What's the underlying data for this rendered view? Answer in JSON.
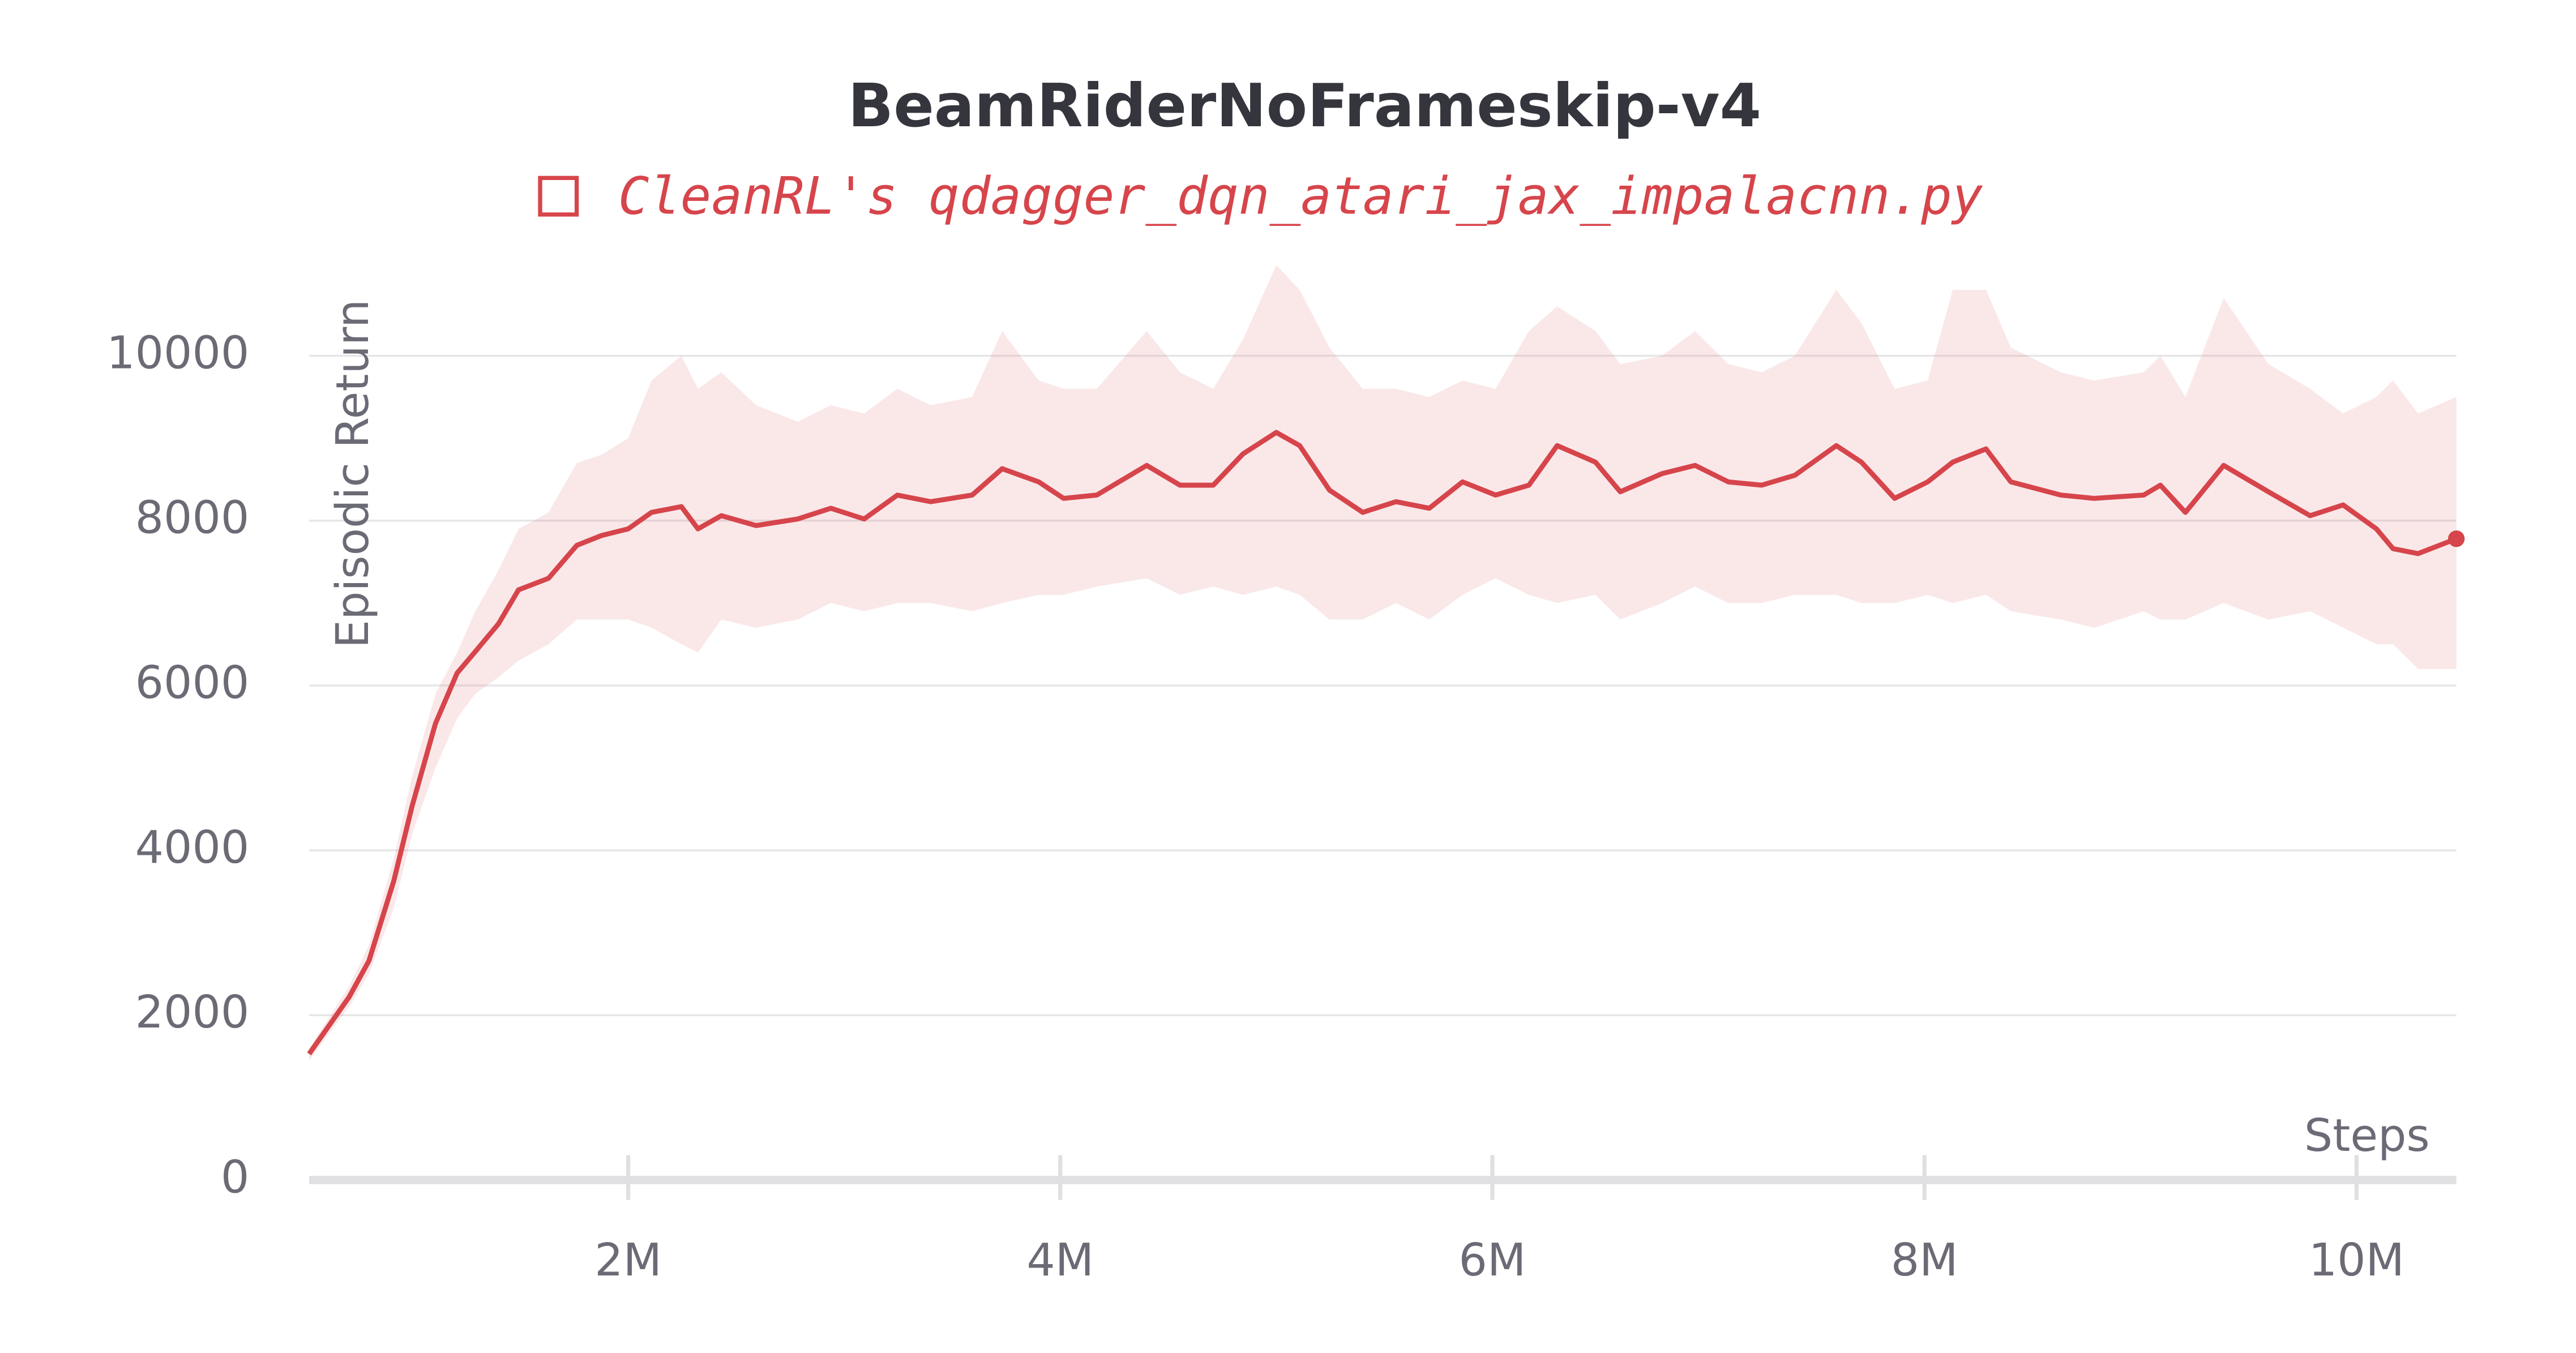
{
  "chart_data": {
    "type": "line",
    "title": "BeamRiderNoFrameskip-v4",
    "y_label": "Episodic Return",
    "x_label": "Steps",
    "xlim": [
      523000,
      10462000
    ],
    "ylim": [
      0,
      11200
    ],
    "yticks": [
      0,
      2000,
      4000,
      6000,
      8000,
      10000
    ],
    "xticks": [
      {
        "value": 2000000,
        "label": "2M"
      },
      {
        "value": 4000000,
        "label": "4M"
      },
      {
        "value": 6000000,
        "label": "6M"
      },
      {
        "value": 8000000,
        "label": "8M"
      },
      {
        "value": 10000000,
        "label": "10M"
      }
    ],
    "grid": true,
    "legend": "top",
    "x": [
      523000,
      708000,
      800000,
      915000,
      1000000,
      1108000,
      1208000,
      1292000,
      1400000,
      1492000,
      1631000,
      1762000,
      1877000,
      2000000,
      2108000,
      2246000,
      2323000,
      2431000,
      2592000,
      2785000,
      2938000,
      3092000,
      3246000,
      3400000,
      3592000,
      3731000,
      3900000,
      4015000,
      4169000,
      4400000,
      4554000,
      4708000,
      4846000,
      5000000,
      5108000,
      5246000,
      5400000,
      5554000,
      5708000,
      5862000,
      6015000,
      6169000,
      6300000,
      6477000,
      6592000,
      6785000,
      6938000,
      7092000,
      7246000,
      7400000,
      7592000,
      7708000,
      7862000,
      8015000,
      8131000,
      8285000,
      8400000,
      8631000,
      8785000,
      9015000,
      9092000,
      9208000,
      9385000,
      9592000,
      9785000,
      9938000,
      10092000,
      10169000,
      10285000,
      10462000
    ],
    "series": [
      {
        "name": "CleanRL's qdagger_dqn_atari_jax_impalacnn.py",
        "color": "#d6454b",
        "values": [
          1530,
          2220,
          2660,
          3630,
          4540,
          5540,
          6150,
          6410,
          6750,
          7160,
          7300,
          7700,
          7820,
          7900,
          8100,
          8170,
          7900,
          8060,
          7940,
          8020,
          8150,
          8020,
          8310,
          8230,
          8310,
          8630,
          8470,
          8270,
          8310,
          8670,
          8430,
          8430,
          8810,
          9070,
          8910,
          8370,
          8100,
          8230,
          8150,
          8470,
          8310,
          8430,
          8910,
          8710,
          8350,
          8570,
          8670,
          8470,
          8430,
          8550,
          8910,
          8710,
          8270,
          8470,
          8710,
          8870,
          8470,
          8310,
          8270,
          8310,
          8430,
          8100,
          8670,
          8350,
          8060,
          8190,
          7900,
          7660,
          7600,
          7780
        ],
        "upper": [
          1600,
          2350,
          2850,
          3900,
          4900,
          5900,
          6400,
          6900,
          7400,
          7900,
          8100,
          8700,
          8800,
          9000,
          9700,
          10000,
          9600,
          9800,
          9400,
          9200,
          9400,
          9300,
          9600,
          9400,
          9500,
          10300,
          9700,
          9600,
          9600,
          10300,
          9800,
          9600,
          10200,
          11100,
          10800,
          10100,
          9600,
          9600,
          9500,
          9700,
          9600,
          10300,
          10600,
          10300,
          9900,
          10000,
          10300,
          9900,
          9800,
          10000,
          10800,
          10400,
          9600,
          9700,
          10800,
          10800,
          10100,
          9800,
          9700,
          9800,
          10000,
          9500,
          10700,
          9900,
          9600,
          9300,
          9500,
          9700,
          9300,
          9500
        ],
        "lower": [
          1450,
          2100,
          2500,
          3300,
          4200,
          5000,
          5600,
          5900,
          6100,
          6300,
          6500,
          6800,
          6800,
          6800,
          6700,
          6500,
          6400,
          6800,
          6700,
          6800,
          7000,
          6900,
          7000,
          7000,
          6900,
          7000,
          7100,
          7100,
          7200,
          7300,
          7100,
          7200,
          7100,
          7200,
          7100,
          6800,
          6800,
          7000,
          6800,
          7100,
          7300,
          7100,
          7000,
          7100,
          6800,
          7000,
          7200,
          7000,
          7000,
          7100,
          7100,
          7000,
          7000,
          7100,
          7000,
          7100,
          6900,
          6800,
          6700,
          6900,
          6800,
          6800,
          7000,
          6800,
          6900,
          6700,
          6500,
          6500,
          6200,
          6200
        ]
      }
    ]
  }
}
